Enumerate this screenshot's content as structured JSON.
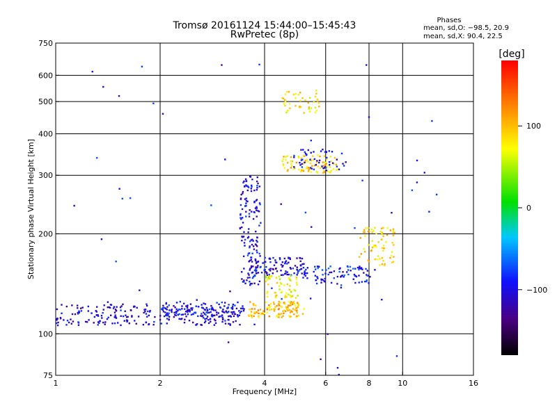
{
  "title": "Tromsø 20161124 15:44:00–15:45:43",
  "subtitle": "RwPretec (8p)",
  "phase_note": {
    "heading": "Phases",
    "line_o": "mean, sd,O: −98.5, 20.9",
    "line_x": "mean, sd,X:  90.4, 22.5"
  },
  "colorbar": {
    "label": "[deg]",
    "ticks": [
      "100",
      "0",
      "−100"
    ],
    "tick_values": [
      100,
      0,
      -100
    ],
    "range": [
      -180,
      180
    ]
  },
  "chart_data": {
    "type": "scatter",
    "title": "Tromsø 20161124 15:44:00–15:45:43",
    "subtitle": "RwPretec (8p)",
    "xlabel": "Frequency [MHz]",
    "ylabel": "Stationary phase Virtual Height [km]",
    "x_scale": "log",
    "y_scale": "log",
    "xlim": [
      1,
      16
    ],
    "ylim": [
      75,
      750
    ],
    "xticks": [
      1,
      2,
      4,
      6,
      8,
      10,
      16
    ],
    "xtick_labels": [
      "1",
      "2",
      "4",
      "6",
      "8",
      "10",
      "16"
    ],
    "yticks": [
      75,
      100,
      200,
      300,
      400,
      500,
      600,
      750
    ],
    "ytick_labels": [
      "75",
      "100",
      "200",
      "300",
      "400",
      "500",
      "600",
      "750"
    ],
    "grid": true,
    "color_scale": "phase in degrees, rainbow from −180 (black/purple) to +180 (red)",
    "point_groups": [
      {
        "desc": "low E/F trace 1–3.5 MHz",
        "xr": [
          1.0,
          3.5
        ],
        "y": [
          106,
          123
        ],
        "phase": -105,
        "n": 260
      },
      {
        "desc": "trace near 2–3.5 MHz",
        "xr": [
          2.0,
          3.4
        ],
        "y": [
          110,
          125
        ],
        "phase": -95,
        "n": 90
      },
      {
        "desc": "rising O trace",
        "xr": [
          3.4,
          3.9
        ],
        "y": [
          140,
          300
        ],
        "phase": -100,
        "n": 140
      },
      {
        "desc": "O trace near 4–5 MHz",
        "xr": [
          3.6,
          5.2
        ],
        "y": [
          150,
          170
        ],
        "phase": -100,
        "n": 110
      },
      {
        "desc": "X trace 3.6–5.2 MHz",
        "xr": [
          3.6,
          5.2
        ],
        "y": [
          112,
          125
        ],
        "phase": 100,
        "n": 120
      },
      {
        "desc": "X trace 4–5 MHz",
        "xr": [
          4.0,
          5.0
        ],
        "y": [
          128,
          150
        ],
        "phase": 70,
        "n": 60
      },
      {
        "desc": "mid band 5–8 MHz",
        "xr": [
          5.0,
          8.0
        ],
        "y": [
          140,
          160
        ],
        "phase": -90,
        "n": 90
      },
      {
        "desc": "upper band 7.5–9.5 MHz",
        "xr": [
          7.5,
          9.5
        ],
        "y": [
          160,
          210
        ],
        "phase": 90,
        "n": 70
      },
      {
        "desc": "multi-hop 4.5–6.5 MHz",
        "xr": [
          4.5,
          6.5
        ],
        "y": [
          305,
          345
        ],
        "phase": 90,
        "n": 90
      },
      {
        "desc": "multi-hop 4.5–6.5 MHz, O",
        "xr": [
          4.8,
          7.0
        ],
        "y": [
          310,
          360
        ],
        "phase": -100,
        "n": 50
      },
      {
        "desc": "third hop 4.5–5.8 MHz",
        "xr": [
          4.5,
          5.8
        ],
        "y": [
          460,
          540
        ],
        "phase": 80,
        "n": 45
      },
      {
        "desc": "scattered points",
        "xr": [
          1.0,
          13.0
        ],
        "y": [
          75,
          650
        ],
        "phase": -100,
        "n": 60
      }
    ]
  }
}
